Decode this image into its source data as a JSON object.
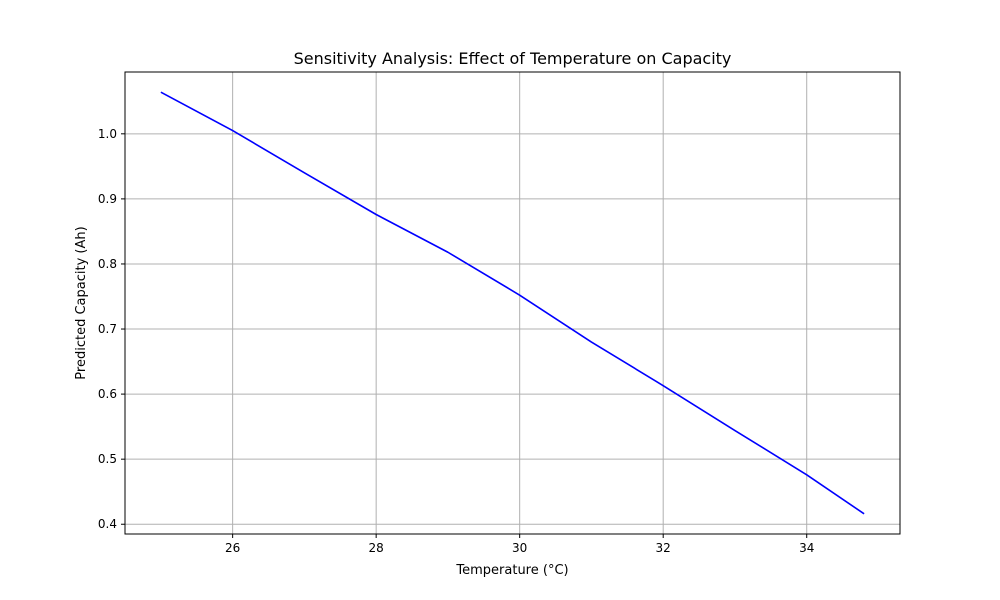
{
  "chart_data": {
    "type": "line",
    "title": "Sensitivity Analysis: Effect of Temperature on Capacity",
    "xlabel": "Temperature (°C)",
    "ylabel": "Predicted Capacity (Ah)",
    "xlim": [
      24.5,
      35.3
    ],
    "ylim": [
      0.385,
      1.095
    ],
    "xticks": [
      26,
      28,
      30,
      32,
      34
    ],
    "xtick_labels": [
      "26",
      "28",
      "30",
      "32",
      "34"
    ],
    "yticks": [
      0.4,
      0.5,
      0.6,
      0.7,
      0.8,
      0.9,
      1.0
    ],
    "ytick_labels": [
      "0.4",
      "0.5",
      "0.6",
      "0.7",
      "0.8",
      "0.9",
      "1.0"
    ],
    "grid": true,
    "series": [
      {
        "color": "#0000ff",
        "x": [
          25.0,
          26.0,
          27.0,
          28.0,
          29.0,
          29.85,
          30.0,
          31.0,
          32.0,
          33.0,
          34.0,
          34.8
        ],
        "y": [
          1.064,
          1.005,
          0.94,
          0.876,
          0.818,
          0.762,
          0.752,
          0.68,
          0.613,
          0.544,
          0.476,
          0.416
        ]
      }
    ]
  }
}
